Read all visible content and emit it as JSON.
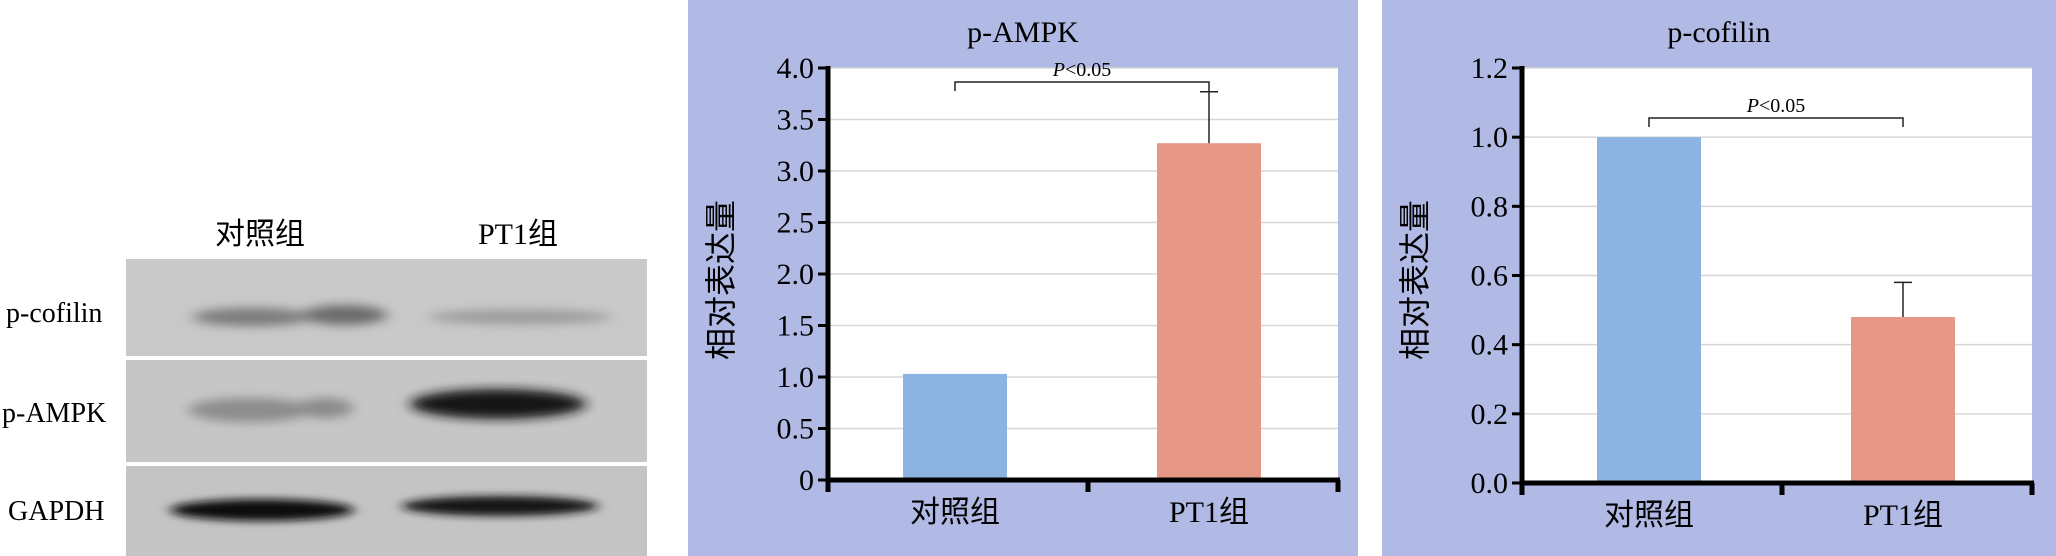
{
  "western_blot": {
    "column_labels": [
      "对照组",
      "PT1组"
    ],
    "row_labels": [
      "p-cofilin",
      "p-AMPK",
      "GAPDH"
    ]
  },
  "chart_data": [
    {
      "type": "bar",
      "title": "p-AMPK",
      "ylabel": "相对表达量",
      "xlabel": "",
      "categories": [
        "对照组",
        "PT1组"
      ],
      "values": [
        1.03,
        3.27
      ],
      "error": [
        0,
        0.5
      ],
      "colors": [
        "#8db3e2",
        "#e69785"
      ],
      "ylim": [
        0,
        4.0
      ],
      "yticks": [
        "0",
        "0.5",
        "1.0",
        "1.5",
        "2.0",
        "2.5",
        "3.0",
        "3.5",
        "4.0"
      ],
      "grid": true,
      "annotation": "P<0.05"
    },
    {
      "type": "bar",
      "title": "p-cofilin",
      "ylabel": "相对表达量",
      "xlabel": "",
      "categories": [
        "对照组",
        "PT1组"
      ],
      "values": [
        1.0,
        0.48
      ],
      "error": [
        0,
        0.1
      ],
      "colors": [
        "#8db3e2",
        "#e69785"
      ],
      "ylim": [
        0,
        1.2
      ],
      "yticks": [
        "0.0",
        "0.2",
        "0.4",
        "0.6",
        "0.8",
        "1.0",
        "1.2"
      ],
      "grid": true,
      "annotation": "P<0.05"
    }
  ]
}
